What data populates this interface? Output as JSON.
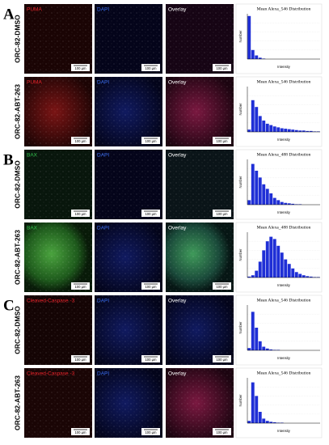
{
  "panels": [
    {
      "letter": "A",
      "rows": [
        {
          "label": "ORC-82-DMSO",
          "images": [
            {
              "label": "PUMA",
              "color": "#e8242b",
              "scale": "100 µm"
            },
            {
              "label": "DAPI",
              "color": "#3a6df0",
              "scale": "100 µm"
            },
            {
              "label": "Overlay",
              "color": "#ffffff",
              "scale": "100 µm"
            }
          ],
          "histogram": {
            "title": "Mean Alexa_546 Distribution",
            "x_label": "Intensity",
            "y_label": "Number",
            "color": "#1f2fd6",
            "ylim": [
              0,
              100
            ],
            "counts": [
              95,
              20,
              8,
              3,
              1,
              0,
              0,
              0,
              0,
              0,
              0,
              0,
              0,
              0,
              0,
              0,
              0,
              0,
              0,
              0
            ]
          }
        },
        {
          "label": "ORC-82-ABT-263",
          "images": [
            {
              "label": "PUMA",
              "color": "#e8242b",
              "scale": "100 µm"
            },
            {
              "label": "DAPI",
              "color": "#3a6df0",
              "scale": "100 µm"
            },
            {
              "label": "Overlay",
              "color": "#ffffff",
              "scale": "100 µm"
            }
          ],
          "histogram": {
            "title": "Mean Alexa_546 Distribution",
            "x_label": "Intensity",
            "y_label": "Number",
            "color": "#1f2fd6",
            "ylim": [
              0,
              100
            ],
            "counts": [
              5,
              70,
              55,
              35,
              25,
              18,
              15,
              12,
              10,
              8,
              7,
              6,
              5,
              4,
              3,
              3,
              2,
              2,
              1,
              1
            ]
          }
        }
      ]
    },
    {
      "letter": "B",
      "rows": [
        {
          "label": "ORC-82-DMSO",
          "images": [
            {
              "label": "BAX",
              "color": "#2fbf4a",
              "scale": "100 µm"
            },
            {
              "label": "DAPI",
              "color": "#3a6df0",
              "scale": "100 µm"
            },
            {
              "label": "Overlay",
              "color": "#ffffff",
              "scale": "100 µm"
            }
          ],
          "histogram": {
            "title": "Mean Alexa_488 Distribution",
            "x_label": "Intensity",
            "y_label": "Number",
            "color": "#1f2fd6",
            "ylim": [
              0,
              100
            ],
            "counts": [
              10,
              90,
              75,
              60,
              45,
              35,
              25,
              15,
              10,
              6,
              4,
              3,
              2,
              1,
              1,
              0,
              0,
              0,
              0,
              0
            ]
          }
        },
        {
          "label": "ORC-82-ABT-263",
          "images": [
            {
              "label": "BAX",
              "color": "#2fbf4a",
              "scale": "100 µm"
            },
            {
              "label": "DAPI",
              "color": "#3a6df0",
              "scale": "100 µm"
            },
            {
              "label": "Overlay",
              "color": "#ffffff",
              "scale": "100 µm"
            }
          ],
          "histogram": {
            "title": "Mean Alexa_488 Distribution",
            "x_label": "Intensity",
            "y_label": "Number",
            "color": "#1f2fd6",
            "ylim": [
              0,
              100
            ],
            "counts": [
              2,
              5,
              15,
              35,
              60,
              80,
              90,
              85,
              70,
              55,
              40,
              30,
              20,
              12,
              8,
              5,
              3,
              2,
              1,
              1
            ]
          }
        }
      ]
    },
    {
      "letter": "C",
      "rows": [
        {
          "label": "ORC-82-DMSO",
          "images": [
            {
              "label": "Cleaved-Caspase -3",
              "color": "#e8242b",
              "scale": "100 µm"
            },
            {
              "label": "DAPI",
              "color": "#3a6df0",
              "scale": "100 µm"
            },
            {
              "label": "Overlay",
              "color": "#ffffff",
              "scale": "100 µm"
            }
          ],
          "histogram": {
            "title": "Mean Alexa_546 Distribution",
            "x_label": "Intensity",
            "y_label": "Number",
            "color": "#1f2fd6",
            "ylim": [
              0,
              100
            ],
            "counts": [
              5,
              85,
              50,
              20,
              8,
              4,
              2,
              1,
              1,
              0,
              0,
              0,
              0,
              0,
              0,
              0,
              0,
              0,
              0,
              0
            ]
          }
        },
        {
          "label": "ORC-82-ABT-263",
          "images": [
            {
              "label": "Cleaved-Caspase -3",
              "color": "#e8242b",
              "scale": "100 µm"
            },
            {
              "label": "DAPI",
              "color": "#3a6df0",
              "scale": "100 µm"
            },
            {
              "label": "Overlay",
              "color": "#ffffff",
              "scale": "100 µm"
            }
          ],
          "histogram": {
            "title": "Mean Alexa_546 Distribution",
            "x_label": "Intensity",
            "y_label": "Number",
            "color": "#1f2fd6",
            "ylim": [
              0,
              100
            ],
            "counts": [
              5,
              90,
              60,
              25,
              10,
              5,
              3,
              2,
              1,
              1,
              0,
              0,
              0,
              0,
              0,
              0,
              0,
              0,
              0,
              0
            ]
          }
        }
      ]
    }
  ]
}
